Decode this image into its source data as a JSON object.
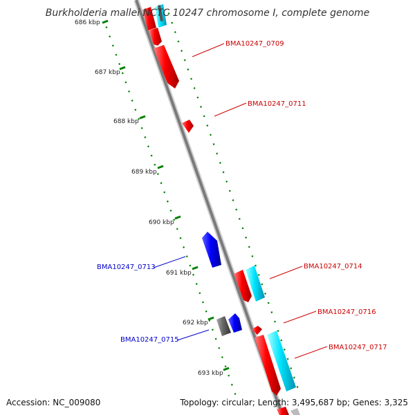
{
  "title": "Burkholderia mallei NCTC 10247 chromosome I, complete genome",
  "footer": {
    "accession": "Accession: NC_009080",
    "summary": "Topology: circular; Length: 3,495,687 bp; Genes: 3,325"
  },
  "colors": {
    "forward_gene": "#ff0000",
    "reverse_gene": "#0000ff",
    "cyan_feature": "#00e5ff",
    "gray_feature": "#666666",
    "backbone": "#888888",
    "tick": "#008000",
    "label_forward": "#cc0000",
    "label_reverse": "#0000cc"
  },
  "ticks": [
    {
      "label": "686 kbp",
      "kbp": 686
    },
    {
      "label": "687 kbp",
      "kbp": 687
    },
    {
      "label": "688 kbp",
      "kbp": 688
    },
    {
      "label": "689 kbp",
      "kbp": 689
    },
    {
      "label": "690 kbp",
      "kbp": 690
    },
    {
      "label": "691 kbp",
      "kbp": 691
    },
    {
      "label": "692 kbp",
      "kbp": 692
    },
    {
      "label": "693 kbp",
      "kbp": 693
    }
  ],
  "gene_labels": [
    {
      "id": "BMA10247_0709",
      "strand": "forward"
    },
    {
      "id": "BMA10247_0711",
      "strand": "forward"
    },
    {
      "id": "BMA10247_0713",
      "strand": "reverse"
    },
    {
      "id": "BMA10247_0714",
      "strand": "forward"
    },
    {
      "id": "BMA10247_0715",
      "strand": "reverse"
    },
    {
      "id": "BMA10247_0716",
      "strand": "forward"
    },
    {
      "id": "BMA10247_0717",
      "strand": "forward"
    }
  ]
}
